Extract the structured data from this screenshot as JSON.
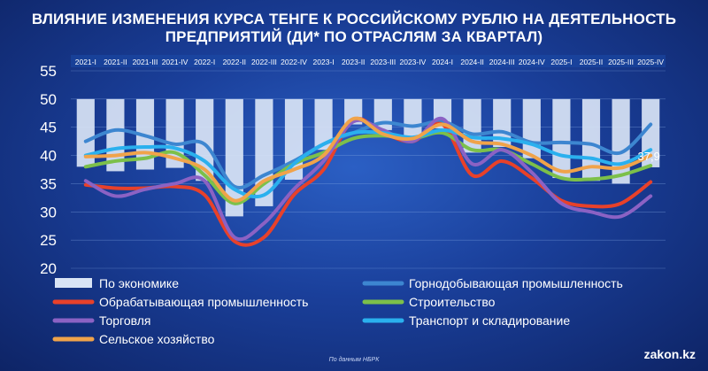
{
  "title_line1": "ВЛИЯНИЕ ИЗМЕНЕНИЯ КУРСА ТЕНГЕ К РОССИЙСКОМУ РУБЛЮ НА ДЕЯТЕЛЬНОСТЬ",
  "title_line2": "ПРЕДПРИЯТИЙ (ДИ* ПО ОТРАСЛЯМ ЗА КВАРТАЛ)",
  "source": "По данным НБРК",
  "logo": "zakon.kz",
  "chart_data": {
    "type": "bar+line",
    "categories": [
      "2021-I",
      "2021-II",
      "2021-III",
      "2021-IV",
      "2022-I",
      "2022-II",
      "2022-III",
      "2022-IV",
      "2023-I",
      "2023-II",
      "2023-III",
      "2023-IV",
      "2024-I",
      "2024-II",
      "2024-III",
      "2024-IV",
      "2025-I",
      "2025-II",
      "2025-III",
      "2025-IV"
    ],
    "ylim": [
      20,
      55
    ],
    "yticks": [
      20,
      25,
      30,
      35,
      40,
      45,
      50,
      55
    ],
    "bar_base": 50,
    "annotation": "37,9",
    "series": [
      {
        "name": "По экономике",
        "kind": "bar",
        "color": "#d9e4f5",
        "values": [
          38.0,
          37.2,
          37.5,
          37.8,
          35.5,
          29.2,
          31.0,
          35.7,
          41.0,
          45.5,
          44.5,
          43.0,
          44.8,
          40.5,
          41.5,
          39.5,
          36.0,
          35.5,
          35.0,
          37.9
        ]
      },
      {
        "name": "Горнодобывающая промышленность",
        "kind": "line",
        "color": "#3d86d0",
        "values": [
          42.5,
          44.5,
          43.5,
          42.0,
          42.0,
          34.5,
          36.5,
          39.0,
          42.0,
          44.0,
          45.8,
          45.2,
          46.0,
          43.8,
          44.2,
          42.3,
          42.3,
          42.0,
          40.5,
          45.5
        ]
      },
      {
        "name": "Обрабатывающая промышленность",
        "kind": "line",
        "color": "#e8412a",
        "values": [
          34.8,
          34.2,
          34.2,
          34.5,
          33.0,
          24.8,
          25.5,
          33.0,
          37.5,
          46.3,
          44.0,
          42.5,
          45.5,
          36.5,
          39.0,
          36.0,
          32.0,
          31.0,
          31.5,
          35.3
        ]
      },
      {
        "name": "Строительство",
        "kind": "line",
        "color": "#7cc04a",
        "values": [
          38.0,
          39.0,
          39.5,
          40.5,
          36.5,
          31.5,
          35.0,
          38.5,
          40.5,
          43.0,
          43.5,
          43.0,
          44.0,
          41.0,
          41.0,
          38.5,
          36.0,
          35.8,
          36.5,
          38.2
        ]
      },
      {
        "name": "Торговля",
        "kind": "line",
        "color": "#8b62c4",
        "values": [
          35.5,
          32.8,
          34.0,
          35.0,
          35.5,
          25.5,
          28.0,
          34.0,
          39.0,
          46.0,
          44.5,
          42.5,
          46.5,
          38.5,
          41.0,
          37.0,
          31.5,
          30.0,
          29.2,
          32.8
        ]
      },
      {
        "name": "Транспорт и складирование",
        "kind": "line",
        "color": "#2ab0ee",
        "values": [
          40.0,
          41.2,
          41.5,
          41.3,
          39.0,
          34.0,
          33.0,
          38.5,
          42.0,
          44.0,
          44.0,
          43.2,
          44.5,
          43.2,
          43.0,
          42.0,
          40.0,
          39.5,
          38.5,
          41.0
        ]
      },
      {
        "name": "Сельское хозяйство",
        "kind": "line",
        "color": "#f0a34a",
        "values": [
          39.8,
          40.0,
          40.5,
          39.5,
          37.5,
          32.0,
          35.5,
          37.5,
          40.0,
          46.5,
          43.8,
          43.0,
          45.5,
          42.5,
          42.0,
          40.0,
          37.2,
          38.0,
          37.8,
          40.0
        ]
      }
    ]
  }
}
